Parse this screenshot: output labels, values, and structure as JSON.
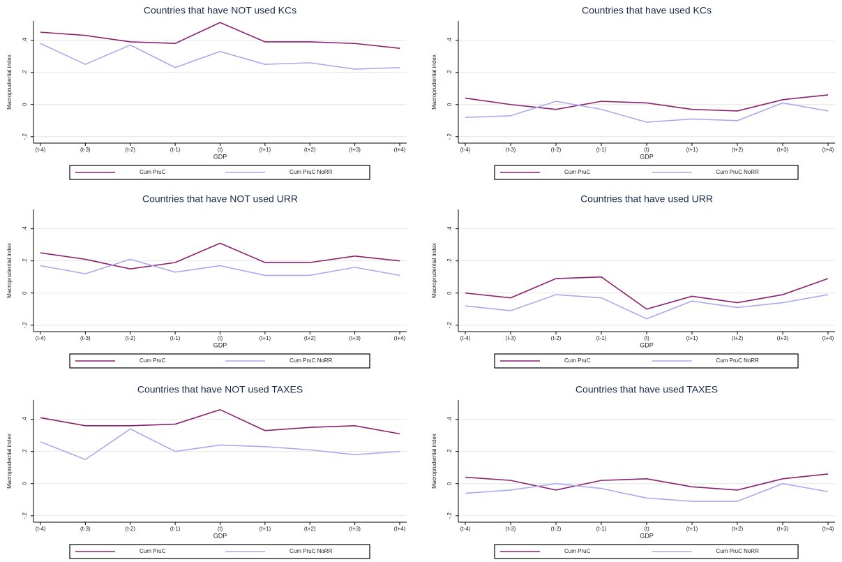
{
  "chart_data": [
    {
      "type": "line",
      "title": "Countries that have NOT used KCs",
      "x_label": "GDP",
      "y_label": "Macroprudential index",
      "categories": [
        "(t-4)",
        "(t-3)",
        "(t-2)",
        "(t-1)",
        "(t)",
        "(t+1)",
        "(t+2)",
        "(t+3)",
        "(t+4)"
      ],
      "ylim": [
        -0.24,
        0.52
      ],
      "yticks": [
        {
          "value": -0.2,
          "label": "-.2"
        },
        {
          "value": 0,
          "label": "0"
        },
        {
          "value": 0.2,
          "label": ".2"
        },
        {
          "value": 0.4,
          "label": ".4"
        }
      ],
      "grid": true,
      "series": [
        {
          "name": "Cum PruC",
          "color": "#8c1f6e",
          "values": [
            0.45,
            0.43,
            0.39,
            0.38,
            0.51,
            0.39,
            0.39,
            0.38,
            0.35
          ]
        },
        {
          "name": "Cum PruC NoRR",
          "color": "#aaaaea",
          "values": [
            0.38,
            0.25,
            0.37,
            0.23,
            0.33,
            0.25,
            0.26,
            0.22,
            0.23
          ]
        }
      ]
    },
    {
      "type": "line",
      "title": "Countries that have used KCs",
      "x_label": "GDP",
      "y_label": "Macroprudential index",
      "categories": [
        "(t-4)",
        "(t-3)",
        "(t-2)",
        "(t-1)",
        "(t)",
        "(t+1)",
        "(t+2)",
        "(t+3)",
        "(t+4)"
      ],
      "ylim": [
        -0.24,
        0.52
      ],
      "yticks": [
        {
          "value": -0.2,
          "label": "-.2"
        },
        {
          "value": 0,
          "label": "0"
        },
        {
          "value": 0.2,
          "label": ".2"
        },
        {
          "value": 0.4,
          "label": ".4"
        }
      ],
      "grid": true,
      "series": [
        {
          "name": "Cum PruC",
          "color": "#8c1f6e",
          "values": [
            0.04,
            0.0,
            -0.03,
            0.02,
            0.01,
            -0.03,
            -0.04,
            0.03,
            0.06
          ]
        },
        {
          "name": "Cum PruC NoRR",
          "color": "#aaaaea",
          "values": [
            -0.08,
            -0.07,
            0.02,
            -0.03,
            -0.11,
            -0.09,
            -0.1,
            0.01,
            -0.04
          ]
        }
      ]
    },
    {
      "type": "line",
      "title": "Countries that have NOT used URR",
      "x_label": "GDP",
      "y_label": "Macroprudential index",
      "categories": [
        "(t-4)",
        "(t-3)",
        "(t-2)",
        "(t-1)",
        "(t)",
        "(t+1)",
        "(t+2)",
        "(t+3)",
        "(t+4)"
      ],
      "ylim": [
        -0.24,
        0.52
      ],
      "yticks": [
        {
          "value": -0.2,
          "label": "-.2"
        },
        {
          "value": 0,
          "label": "0"
        },
        {
          "value": 0.2,
          "label": ".2"
        },
        {
          "value": 0.4,
          "label": ".4"
        }
      ],
      "grid": true,
      "series": [
        {
          "name": "Cum PruC",
          "color": "#8c1f6e",
          "values": [
            0.25,
            0.21,
            0.15,
            0.19,
            0.31,
            0.19,
            0.19,
            0.23,
            0.2
          ]
        },
        {
          "name": "Cum PruC NoRR",
          "color": "#aaaaea",
          "values": [
            0.17,
            0.12,
            0.21,
            0.13,
            0.17,
            0.11,
            0.11,
            0.16,
            0.11
          ]
        }
      ]
    },
    {
      "type": "line",
      "title": "Countries that have used URR",
      "x_label": "GDP",
      "y_label": "Macroprudential index",
      "categories": [
        "(t-4)",
        "(t-3)",
        "(t-2)",
        "(t-1)",
        "(t)",
        "(t+1)",
        "(t+2)",
        "(t+3)",
        "(t+4)"
      ],
      "ylim": [
        -0.24,
        0.52
      ],
      "yticks": [
        {
          "value": -0.2,
          "label": "-.2"
        },
        {
          "value": 0,
          "label": "0"
        },
        {
          "value": 0.2,
          "label": ".2"
        },
        {
          "value": 0.4,
          "label": ".4"
        }
      ],
      "grid": true,
      "series": [
        {
          "name": "Cum PruC",
          "color": "#8c1f6e",
          "values": [
            0.0,
            -0.03,
            0.09,
            0.1,
            -0.1,
            -0.02,
            -0.06,
            -0.01,
            0.09
          ]
        },
        {
          "name": "Cum PruC NoRR",
          "color": "#aaaaea",
          "values": [
            -0.08,
            -0.11,
            -0.01,
            -0.03,
            -0.16,
            -0.05,
            -0.09,
            -0.06,
            -0.01
          ]
        }
      ]
    },
    {
      "type": "line",
      "title": "Countries that have NOT used TAXES",
      "x_label": "GDP",
      "y_label": "Macroprudential index",
      "categories": [
        "(t-4)",
        "(t-3)",
        "(t-2)",
        "(t-1)",
        "(t)",
        "(t+1)",
        "(t+2)",
        "(t+3)",
        "(t+4)"
      ],
      "ylim": [
        -0.24,
        0.52
      ],
      "yticks": [
        {
          "value": -0.2,
          "label": "-.2"
        },
        {
          "value": 0,
          "label": "0"
        },
        {
          "value": 0.2,
          "label": ".2"
        },
        {
          "value": 0.4,
          "label": ".4"
        }
      ],
      "grid": true,
      "series": [
        {
          "name": "Cum PruC",
          "color": "#8c1f6e",
          "values": [
            0.41,
            0.36,
            0.36,
            0.37,
            0.46,
            0.33,
            0.35,
            0.36,
            0.31
          ]
        },
        {
          "name": "Cum PruC NoRR",
          "color": "#aaaaea",
          "values": [
            0.26,
            0.15,
            0.34,
            0.2,
            0.24,
            0.23,
            0.21,
            0.18,
            0.2
          ]
        }
      ]
    },
    {
      "type": "line",
      "title": "Countries that have used TAXES",
      "x_label": "GDP",
      "y_label": "Macroprudential index",
      "categories": [
        "(t-4)",
        "(t-3)",
        "(t-2)",
        "(t-1)",
        "(t)",
        "(t+1)",
        "(t+2)",
        "(t+3)",
        "(t+4)"
      ],
      "ylim": [
        -0.24,
        0.52
      ],
      "yticks": [
        {
          "value": -0.2,
          "label": "-.2"
        },
        {
          "value": 0,
          "label": "0"
        },
        {
          "value": 0.2,
          "label": ".2"
        },
        {
          "value": 0.4,
          "label": ".4"
        }
      ],
      "grid": true,
      "series": [
        {
          "name": "Cum PruC",
          "color": "#8c1f6e",
          "values": [
            0.04,
            0.02,
            -0.04,
            0.02,
            0.03,
            -0.02,
            -0.04,
            0.03,
            0.06
          ]
        },
        {
          "name": "Cum PruC NoRR",
          "color": "#aaaaea",
          "values": [
            -0.06,
            -0.04,
            0.0,
            -0.03,
            -0.09,
            -0.11,
            -0.11,
            0.0,
            -0.05
          ]
        }
      ]
    }
  ]
}
